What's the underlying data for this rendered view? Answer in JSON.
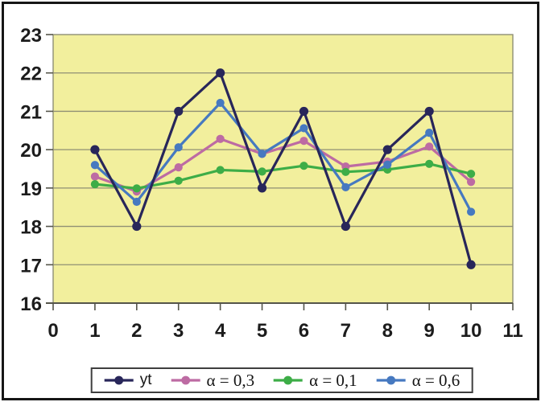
{
  "chart_data": {
    "type": "line",
    "title": "",
    "xlabel": "",
    "ylabel": "",
    "x": [
      1,
      2,
      3,
      4,
      5,
      6,
      7,
      8,
      9,
      10
    ],
    "series": [
      {
        "name": "yt",
        "color": "#28265a",
        "marker": "circle",
        "values": [
          20,
          18,
          21,
          22,
          19,
          21,
          18,
          20,
          21,
          17
        ]
      },
      {
        "name": "α = 0,3",
        "color": "#bd6ba3",
        "marker": "circle",
        "values": [
          19.3,
          18.91,
          19.54,
          20.28,
          19.89,
          20.23,
          19.56,
          19.69,
          20.08,
          19.16
        ]
      },
      {
        "name": "α = 0,1",
        "color": "#3dad47",
        "marker": "circle",
        "values": [
          19.1,
          18.99,
          19.19,
          19.47,
          19.43,
          19.58,
          19.42,
          19.48,
          19.63,
          19.37
        ]
      },
      {
        "name": "α = 0,6",
        "color": "#4679c0",
        "marker": "circle",
        "values": [
          19.6,
          18.64,
          20.06,
          21.22,
          19.89,
          20.56,
          19.02,
          19.61,
          20.44,
          18.38
        ]
      }
    ],
    "xlim": [
      0,
      11
    ],
    "ylim": [
      16,
      23
    ],
    "x_ticks": [
      0,
      1,
      2,
      3,
      4,
      5,
      6,
      7,
      8,
      9,
      10,
      11
    ],
    "y_ticks": [
      16,
      17,
      18,
      19,
      20,
      21,
      22,
      23
    ],
    "grid": "horizontal",
    "legend_position": "bottom",
    "plot_bg": "#f2ef9d",
    "grid_color": "#8f8f74",
    "axis_color": "#55554a",
    "draw_order": [
      1,
      2,
      3,
      0
    ]
  }
}
